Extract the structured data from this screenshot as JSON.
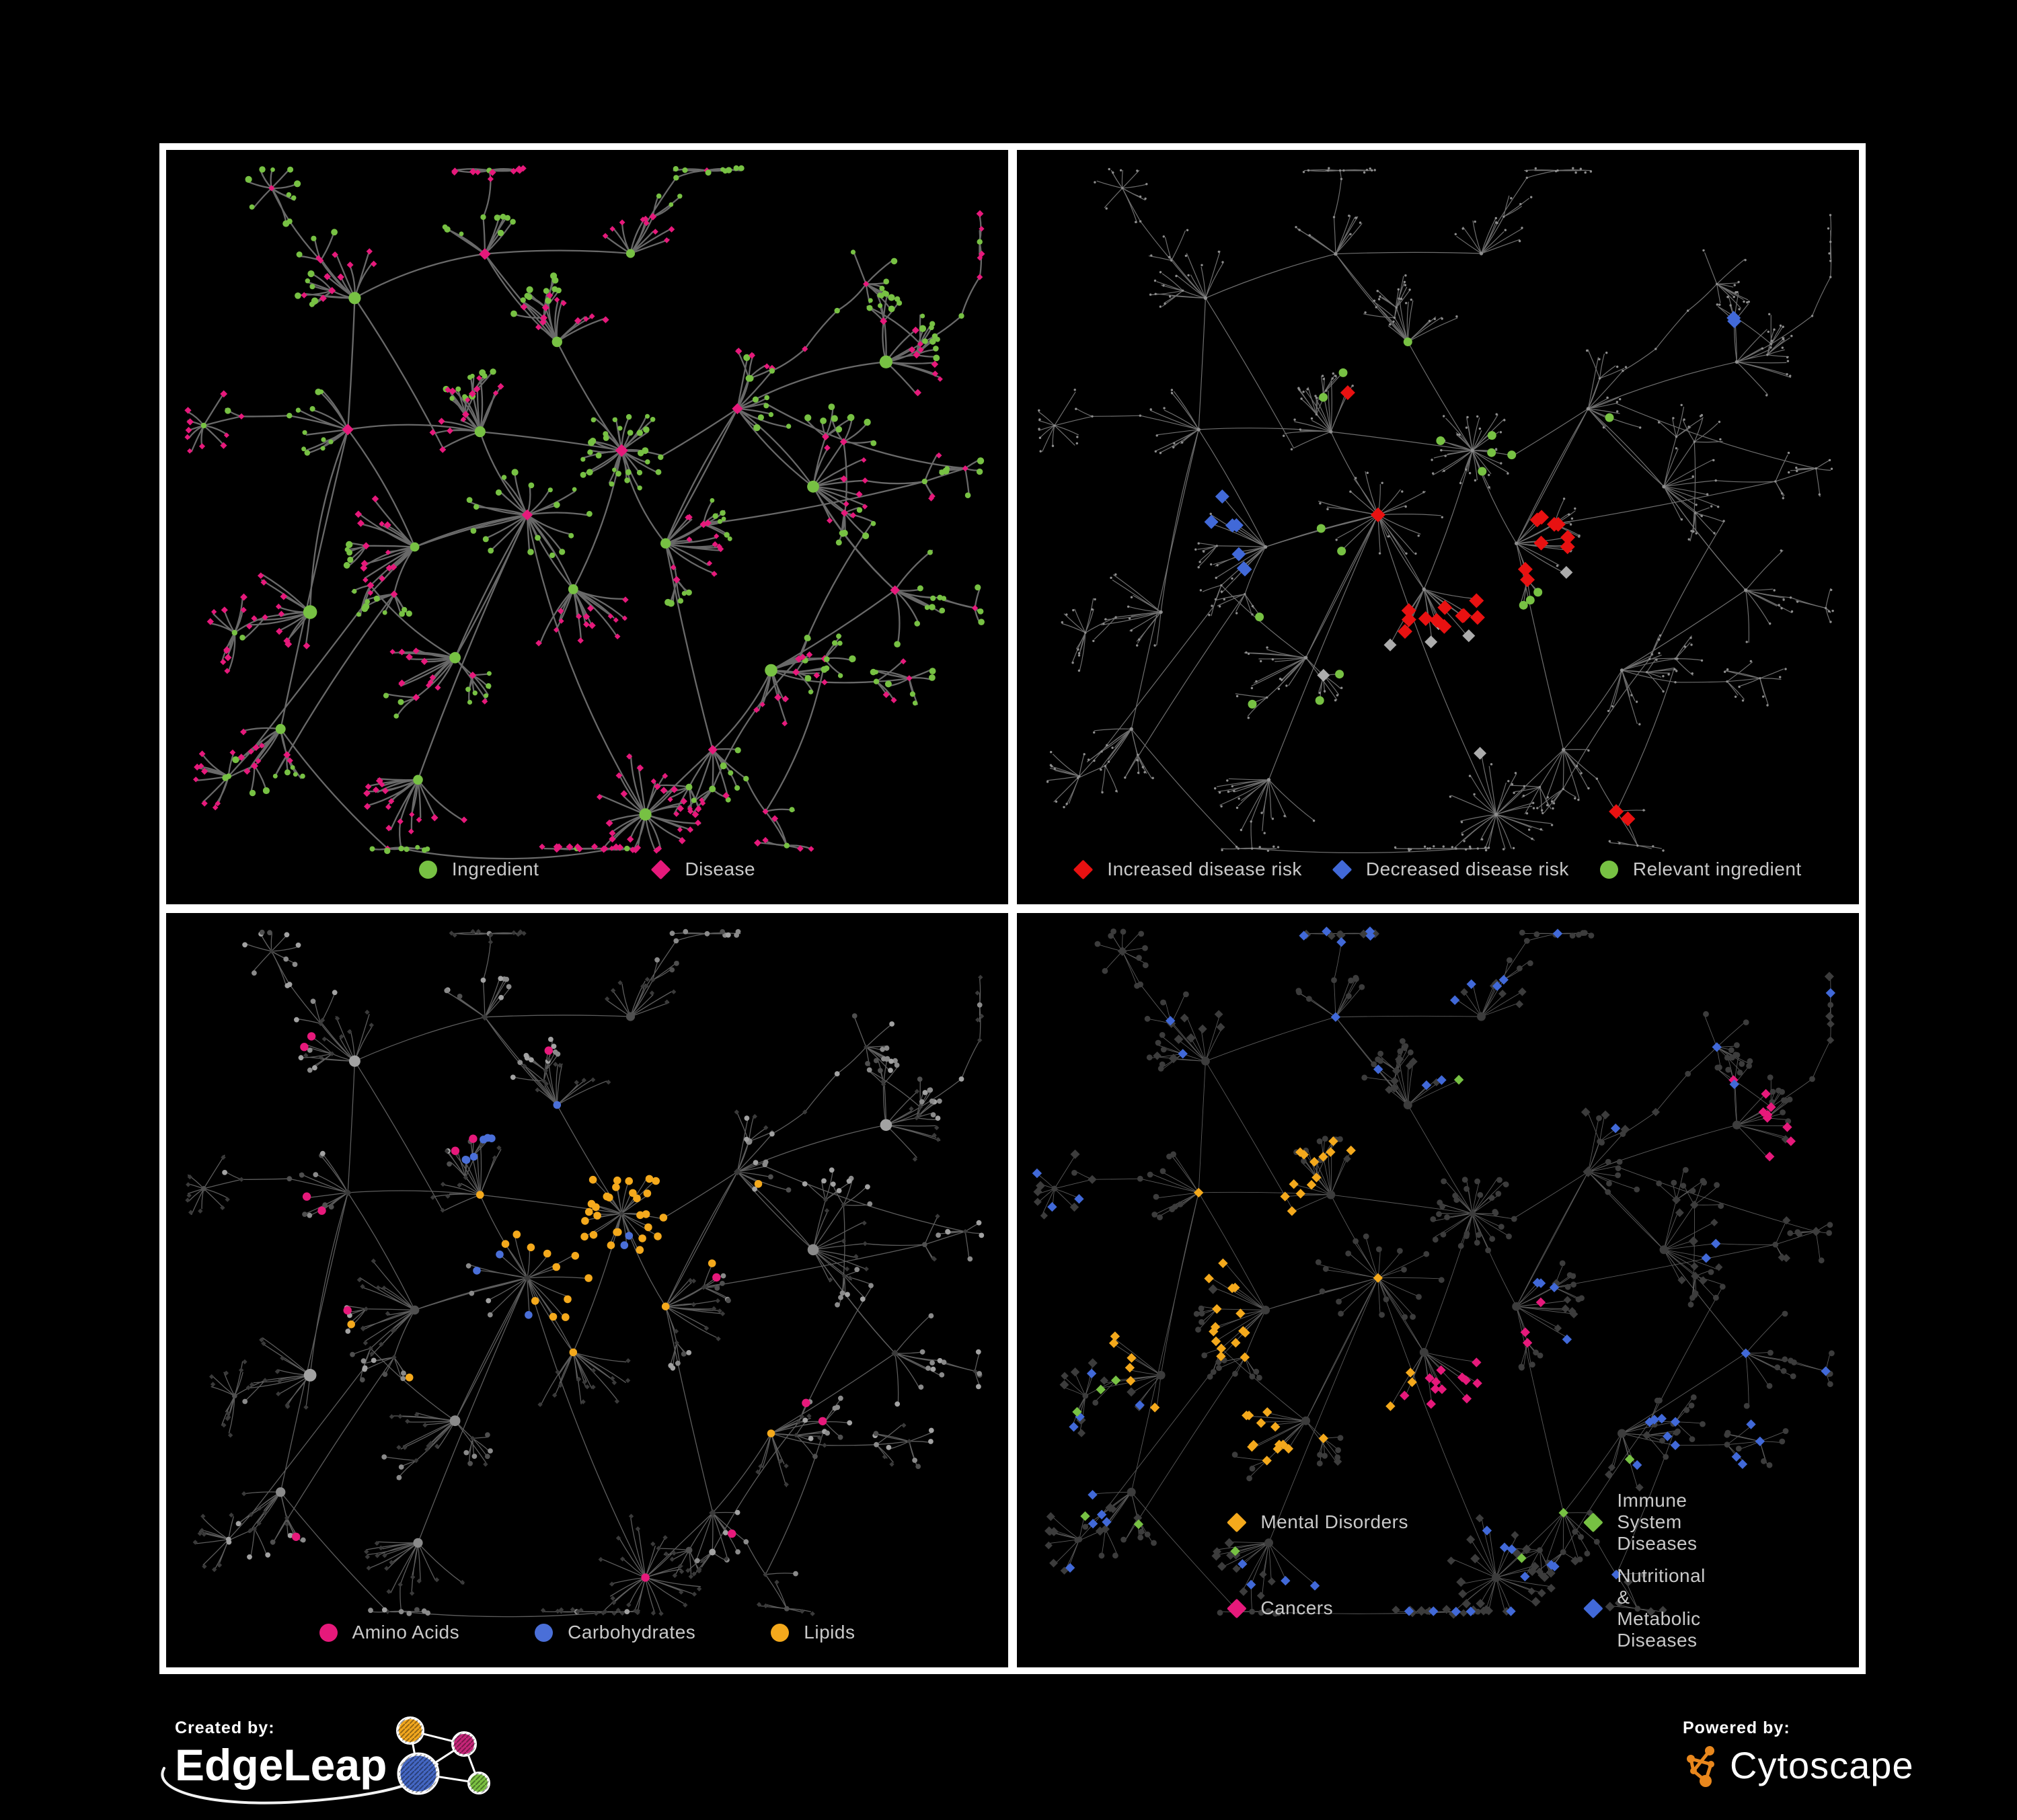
{
  "figure": {
    "description": "Four-panel ingredient-disease network figure on black background",
    "background": "#000000",
    "frame_color": "#FFFFFF"
  },
  "panels": [
    {
      "name": "ingredient-disease-network",
      "legend": [
        {
          "label": "Ingredient",
          "shape": "circle",
          "color": "#77C143"
        },
        {
          "label": "Disease",
          "shape": "diamond",
          "color": "#E6197B"
        }
      ],
      "colors": {
        "ingredient": "#77C143",
        "disease": "#E6197B",
        "edge": "#6F6F6F"
      }
    },
    {
      "name": "disease-risk-network",
      "legend": [
        {
          "label": "Increased disease risk",
          "shape": "diamond",
          "color": "#E81111"
        },
        {
          "label": "Decreased disease risk",
          "shape": "diamond",
          "color": "#4169D8"
        },
        {
          "label": "Relevant ingredient",
          "shape": "circle",
          "color": "#77C143"
        }
      ],
      "colors": {
        "base": "#8E8E8E",
        "edge": "#8A8A8A",
        "increased": "#E81111",
        "decreased": "#4169D8",
        "neutral": "#ACACAC",
        "relevant": "#77C143"
      },
      "highlight_counts": {
        "increased": 28,
        "decreased": 9,
        "neutral": 7,
        "relevant": 18
      }
    },
    {
      "name": "nutrient-class-network",
      "legend": [
        {
          "label": "Amino Acids",
          "shape": "circle",
          "color": "#E6197B"
        },
        {
          "label": "Carbohydrates",
          "shape": "circle",
          "color": "#4A6FD8"
        },
        {
          "label": "Lipids",
          "shape": "circle",
          "color": "#F4A91C"
        }
      ],
      "colors": {
        "ingredient": "#A2A2A2",
        "ingredient_dark": "#4F4F4F",
        "disease": "#3A3A3A",
        "edge": "#6E6E6E",
        "amino": "#E6197B",
        "carbo": "#4A6FD8",
        "lipid": "#F4A91C"
      },
      "highlight_counts": {
        "amino": 14,
        "carbo": 12,
        "lipid": 52
      }
    },
    {
      "name": "disease-class-network",
      "legend": [
        {
          "label": "Mental Disorders",
          "shape": "diamond",
          "color": "#F4A91C"
        },
        {
          "label": "Immune System Diseases",
          "shape": "diamond",
          "color": "#77C143"
        },
        {
          "label": "Cancers",
          "shape": "diamond",
          "color": "#E6197B"
        },
        {
          "label": "Nutritional & Metabolic Diseases",
          "shape": "diamond",
          "color": "#4169D8"
        }
      ],
      "colors": {
        "base": "#3C3C3C",
        "edge": "#979797",
        "mental": "#F4A91C",
        "immune": "#77C143",
        "cancer": "#E6197B",
        "nutritional": "#4169D8"
      },
      "highlight_counts": {
        "mental": 78,
        "immune": 10,
        "cancer": 62,
        "nutritional": 83
      }
    }
  ],
  "footer": {
    "created_by": "Created by:",
    "brand": "EdgeLeap",
    "powered_by": "Powered by:",
    "engine": "Cytoscape",
    "edgeleap_colors": {
      "blue": "#4467C4",
      "orange": "#F2A71E",
      "magenta": "#C62579",
      "green": "#7CC242"
    },
    "cytoscape_color": "#E8871D"
  }
}
